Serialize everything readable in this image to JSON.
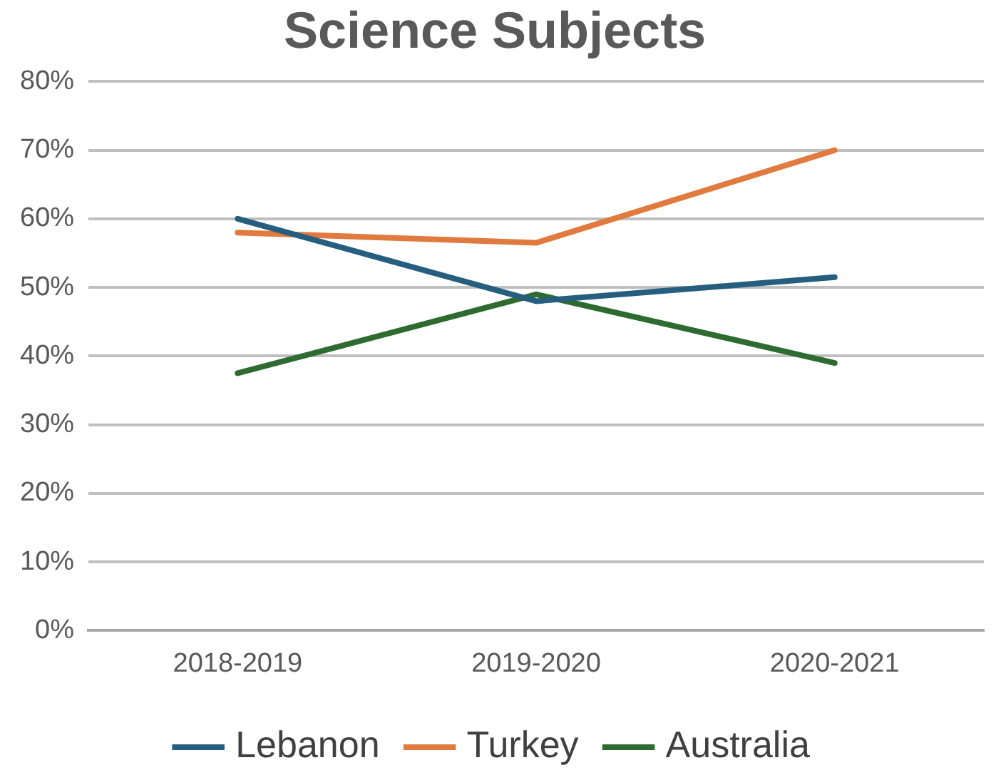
{
  "chart_data": {
    "type": "line",
    "title": "Science Subjects",
    "categories": [
      "2018-2019",
      "2019-2020",
      "2020-2021"
    ],
    "series": [
      {
        "name": "Lebanon",
        "color": "#255e7e",
        "values": [
          60,
          48,
          51.5
        ]
      },
      {
        "name": "Turkey",
        "color": "#e07a3f",
        "values": [
          58,
          56.5,
          70
        ]
      },
      {
        "name": "Australia",
        "color": "#2e6b30",
        "values": [
          37.5,
          49,
          39
        ]
      }
    ],
    "ylim": [
      0,
      80
    ],
    "yticks": [
      {
        "value": 0,
        "label": "0%"
      },
      {
        "value": 10,
        "label": "10%"
      },
      {
        "value": 20,
        "label": "20%"
      },
      {
        "value": 30,
        "label": "30%"
      },
      {
        "value": 40,
        "label": "40%"
      },
      {
        "value": 50,
        "label": "50%"
      },
      {
        "value": 60,
        "label": "60%"
      },
      {
        "value": 70,
        "label": "70%"
      },
      {
        "value": 80,
        "label": "80%"
      }
    ],
    "grid": "y",
    "legend": "bottom",
    "marker": "none",
    "line_style": "solid"
  }
}
